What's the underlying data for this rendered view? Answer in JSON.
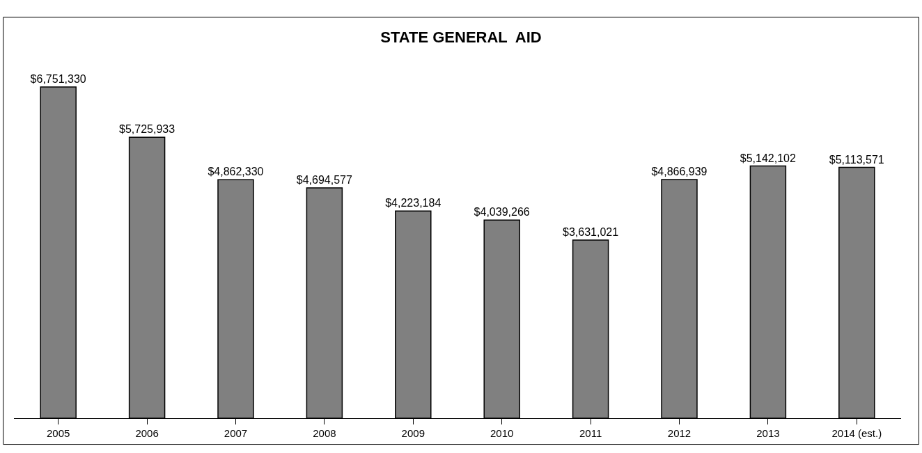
{
  "chart_data": {
    "type": "bar",
    "title": "STATE GENERAL  AID",
    "categories": [
      "2005",
      "2006",
      "2007",
      "2008",
      "2009",
      "2010",
      "2011",
      "2012",
      "2013",
      "2014 (est.)"
    ],
    "values": [
      6751330,
      5725933,
      4862330,
      4694577,
      4223184,
      4039266,
      3631021,
      4866939,
      5142102,
      5113571
    ],
    "value_labels": [
      "$6,751,330",
      "$5,725,933",
      "$4,862,330",
      "$4,694,577",
      "$4,223,184",
      "$4,039,266",
      "$3,631,021",
      "$4,866,939",
      "$5,142,102",
      "$5,113,571"
    ],
    "color": "#808080",
    "tick_labels": "x",
    "legend": false
  }
}
